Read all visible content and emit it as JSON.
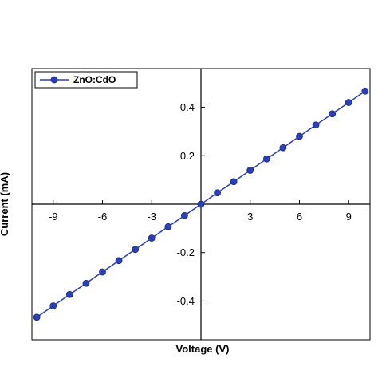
{
  "chart_data": {
    "type": "line",
    "xlabel": "Voltage (V)",
    "ylabel": "Current (mA)",
    "xlim": [
      -10.3,
      10.3
    ],
    "ylim": [
      -0.56,
      0.56
    ],
    "x_ticks": [
      -9,
      -6,
      -3,
      3,
      6,
      9
    ],
    "x_tick_labels": [
      "-9",
      "-6",
      "-3",
      "3",
      "6",
      "9"
    ],
    "y_ticks": [
      -0.4,
      -0.2,
      0.2,
      0.4
    ],
    "y_tick_labels": [
      "-0.4",
      "-0.2",
      "0.2",
      "0.4"
    ],
    "grid": false,
    "legend_position": "top-left",
    "series": [
      {
        "name": "ZnO:CdO",
        "color": "#2b3fb8",
        "marker": "circle",
        "x": [
          -10,
          -9,
          -8,
          -7,
          -6,
          -5,
          -4,
          -3,
          -2,
          -1,
          0,
          1,
          2,
          3,
          4,
          5,
          6,
          7,
          8,
          9,
          10
        ],
        "y": [
          -0.467,
          -0.42,
          -0.373,
          -0.327,
          -0.28,
          -0.233,
          -0.187,
          -0.14,
          -0.093,
          -0.047,
          0,
          0.047,
          0.093,
          0.14,
          0.187,
          0.233,
          0.28,
          0.327,
          0.373,
          0.42,
          0.467
        ]
      }
    ]
  }
}
